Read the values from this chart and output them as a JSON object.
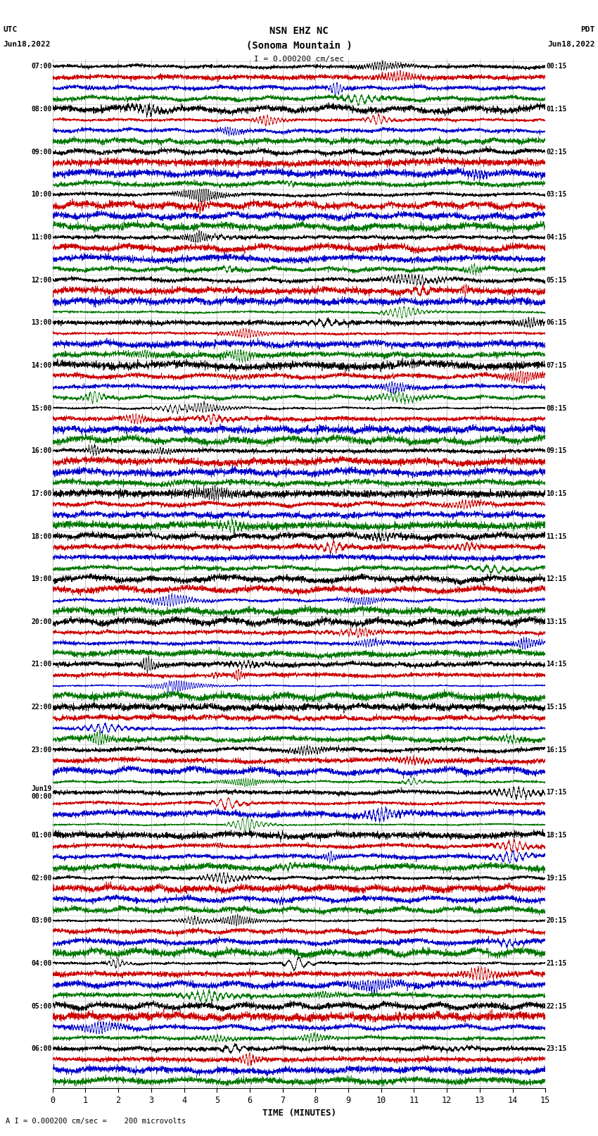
{
  "title_line1": "NSN EHZ NC",
  "title_line2": "(Sonoma Mountain )",
  "title_scale": "I = 0.000200 cm/sec",
  "left_header_line1": "UTC",
  "left_header_line2": "Jun18,2022",
  "right_header_line1": "PDT",
  "right_header_line2": "Jun18,2022",
  "xlabel": "TIME (MINUTES)",
  "footer": "A I = 0.000200 cm/sec =    200 microvolts",
  "background_color": "#ffffff",
  "trace_colors": [
    "#000000",
    "#cc0000",
    "#0000cc",
    "#007700"
  ],
  "utc_labels": [
    "07:00",
    "08:00",
    "09:00",
    "10:00",
    "11:00",
    "12:00",
    "13:00",
    "14:00",
    "15:00",
    "16:00",
    "17:00",
    "18:00",
    "19:00",
    "20:00",
    "21:00",
    "22:00",
    "23:00",
    "Jun19\n00:00",
    "01:00",
    "02:00",
    "03:00",
    "04:00",
    "05:00",
    "06:00"
  ],
  "pdt_labels": [
    "00:15",
    "01:15",
    "02:15",
    "03:15",
    "04:15",
    "05:15",
    "06:15",
    "07:15",
    "08:15",
    "09:15",
    "10:15",
    "11:15",
    "12:15",
    "13:15",
    "14:15",
    "15:15",
    "16:15",
    "17:15",
    "18:15",
    "19:15",
    "20:15",
    "21:15",
    "22:15",
    "23:15"
  ],
  "num_hour_groups": 24,
  "traces_per_group": 4,
  "xmin": 0,
  "xmax": 15,
  "xticks": [
    0,
    1,
    2,
    3,
    4,
    5,
    6,
    7,
    8,
    9,
    10,
    11,
    12,
    13,
    14,
    15
  ],
  "figwidth": 8.5,
  "figheight": 16.13,
  "dpi": 100,
  "noise_seed": 42
}
